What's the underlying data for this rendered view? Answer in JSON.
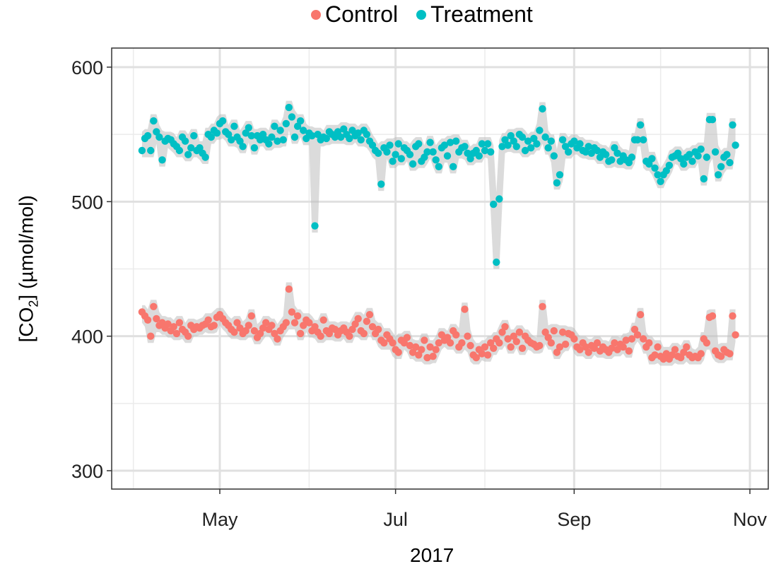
{
  "chart_data": {
    "type": "scatter",
    "title": "",
    "xlabel": "2017",
    "ylabel": {
      "prefix": "[CO",
      "sub": "2",
      "suffix": "] (µmol/mol)"
    },
    "ylim": [
      285,
      617
    ],
    "xlim": [
      "2017-03-25",
      "2017-11-07"
    ],
    "yticks": [
      300,
      400,
      500,
      600
    ],
    "xticks": [
      {
        "date": "2017-05-01",
        "label": "May"
      },
      {
        "date": "2017-07-01",
        "label": "Jul"
      },
      {
        "date": "2017-09-01",
        "label": "Sep"
      },
      {
        "date": "2017-11-01",
        "label": "Nov"
      }
    ],
    "grid": true,
    "legend_position": "top",
    "ribbon": "grey confidence band around each series",
    "months": [
      {
        "month": "2017-04",
        "first_day": 4
      },
      {
        "month": "2017-05",
        "first_day": 1
      },
      {
        "month": "2017-06",
        "first_day": 1
      },
      {
        "month": "2017-07",
        "first_day": 1
      },
      {
        "month": "2017-08",
        "first_day": 1
      },
      {
        "month": "2017-09",
        "first_day": 1
      },
      {
        "month": "2017-10",
        "first_day": 1
      }
    ],
    "series": [
      {
        "name": "Control",
        "color": "#F8766D",
        "daily_values_by_month": [
          [
            418,
            415,
            412,
            400,
            422,
            413,
            408,
            410,
            406,
            409,
            404,
            407,
            402,
            410,
            405,
            403,
            400,
            408,
            405,
            407,
            406,
            408,
            409,
            412,
            407,
            408,
            414
          ],
          [
            416,
            413,
            410,
            408,
            405,
            403,
            410,
            406,
            402,
            404,
            408,
            415,
            404,
            399,
            402,
            406,
            410,
            405,
            408,
            402,
            398,
            404,
            407,
            410,
            435,
            418,
            410,
            415,
            402,
            408,
            412
          ],
          [
            410,
            404,
            407,
            403,
            400,
            412,
            404,
            402,
            406,
            405,
            401,
            404,
            406,
            403,
            400,
            405,
            409,
            413,
            404,
            402,
            411,
            416,
            407,
            402,
            405,
            397,
            395,
            401,
            398,
            395
          ],
          [
            390,
            388,
            397,
            395,
            399,
            393,
            388,
            392,
            386,
            390,
            397,
            384,
            392,
            385,
            390,
            395,
            401,
            397,
            399,
            395,
            404,
            401,
            392,
            395,
            420,
            400,
            393,
            386,
            384,
            390,
            387
          ],
          [
            392,
            386,
            395,
            391,
            398,
            395,
            403,
            407,
            398,
            392,
            400,
            396,
            403,
            391,
            400,
            397,
            395,
            394,
            392,
            393,
            422,
            403,
            399,
            395,
            404,
            388,
            392,
            403,
            394,
            402,
            401
          ],
          [
            398,
            392,
            390,
            395,
            392,
            388,
            393,
            391,
            395,
            389,
            392,
            390,
            388,
            391,
            395,
            390,
            394,
            392,
            397,
            389,
            398,
            405,
            401,
            416,
            398,
            392,
            395,
            384,
            386,
            392
          ],
          [
            385,
            383,
            387,
            383,
            386,
            390,
            385,
            384,
            388,
            392,
            386,
            384,
            385,
            384,
            387,
            398,
            395,
            414,
            415,
            389,
            386,
            385,
            390,
            388,
            387,
            415,
            401
          ]
        ]
      },
      {
        "name": "Treatment",
        "color": "#00BFC4",
        "daily_values_by_month": [
          [
            538,
            547,
            549,
            538,
            560,
            552,
            548,
            531,
            545,
            547,
            546,
            543,
            541,
            538,
            548,
            545,
            535,
            540,
            549,
            538,
            540,
            536,
            533,
            550,
            548,
            553,
            551
          ],
          [
            558,
            560,
            552,
            550,
            546,
            556,
            548,
            545,
            541,
            551,
            555,
            549,
            540,
            549,
            546,
            550,
            546,
            543,
            548,
            556,
            545,
            553,
            546,
            558,
            570,
            563,
            548,
            556,
            560,
            553,
            547
          ],
          [
            551,
            549,
            482,
            550,
            546,
            548,
            547,
            552,
            550,
            548,
            552,
            548,
            554,
            550,
            547,
            553,
            549,
            551,
            546,
            553,
            550,
            545,
            542,
            538,
            536,
            513,
            540,
            537,
            542,
            530
          ],
          [
            535,
            543,
            532,
            540,
            538,
            535,
            528,
            541,
            543,
            530,
            533,
            537,
            544,
            537,
            531,
            526,
            540,
            542,
            534,
            544,
            526,
            545,
            537,
            540,
            541,
            536,
            532,
            536,
            538,
            534,
            543
          ],
          [
            538,
            543,
            537,
            498,
            455,
            502,
            541,
            546,
            542,
            549,
            545,
            541,
            550,
            548,
            538,
            545,
            540,
            547,
            543,
            553,
            569,
            548,
            540,
            545,
            534,
            514,
            520,
            546,
            541,
            537,
            543
          ],
          [
            545,
            540,
            543,
            538,
            537,
            541,
            536,
            540,
            538,
            533,
            537,
            535,
            530,
            531,
            540,
            536,
            530,
            534,
            531,
            529,
            533,
            546,
            546,
            557,
            546,
            530,
            528,
            532,
            525,
            520
          ],
          [
            515,
            520,
            523,
            527,
            533,
            534,
            536,
            532,
            528,
            533,
            535,
            530,
            537,
            534,
            539,
            517,
            533,
            561,
            561,
            537,
            520,
            526,
            533,
            535,
            529,
            557,
            542
          ]
        ]
      }
    ]
  }
}
